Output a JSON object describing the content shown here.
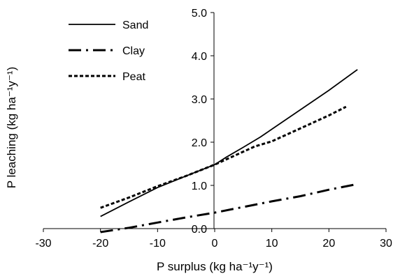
{
  "chart_data": {
    "type": "line",
    "xlabel": "P surplus (kg ha⁻¹y⁻¹)",
    "ylabel": "P leaching (kg ha⁻¹y⁻¹)",
    "xlim": [
      -30,
      30
    ],
    "ylim": [
      0,
      5
    ],
    "xticks": [
      -30,
      -20,
      -10,
      0,
      10,
      20,
      30
    ],
    "xtick_labels": [
      "-30",
      "-20",
      "-10",
      "0",
      "10",
      "20",
      "30"
    ],
    "yticks": [
      0,
      1,
      2,
      3,
      4,
      5
    ],
    "ytick_labels": [
      "0.0",
      "1.0",
      "2.0",
      "3.0",
      "4.0",
      "5.0"
    ],
    "grid": false,
    "legend_position": "top-left",
    "series": [
      {
        "name": "Sand",
        "style": "solid",
        "color": "#000000",
        "x": [
          -20,
          -15,
          -10,
          -5,
          0,
          2,
          5,
          8,
          10,
          15,
          20,
          25
        ],
        "y": [
          0.28,
          0.62,
          0.95,
          1.22,
          1.48,
          1.65,
          1.88,
          2.12,
          2.3,
          2.75,
          3.2,
          3.68
        ]
      },
      {
        "name": "Clay",
        "style": "dash-dot",
        "color": "#000000",
        "x": [
          -20,
          -15,
          -10,
          -5,
          0,
          5,
          10,
          15,
          20,
          25
        ],
        "y": [
          -0.08,
          0.02,
          0.14,
          0.26,
          0.37,
          0.5,
          0.63,
          0.75,
          0.9,
          1.03
        ]
      },
      {
        "name": "Peat",
        "style": "dotted",
        "color": "#000000",
        "x": [
          -20,
          -15,
          -10,
          -5,
          0,
          3,
          7,
          10,
          15,
          20,
          23
        ],
        "y": [
          0.48,
          0.72,
          0.98,
          1.22,
          1.48,
          1.66,
          1.9,
          2.02,
          2.32,
          2.62,
          2.82
        ]
      }
    ]
  }
}
